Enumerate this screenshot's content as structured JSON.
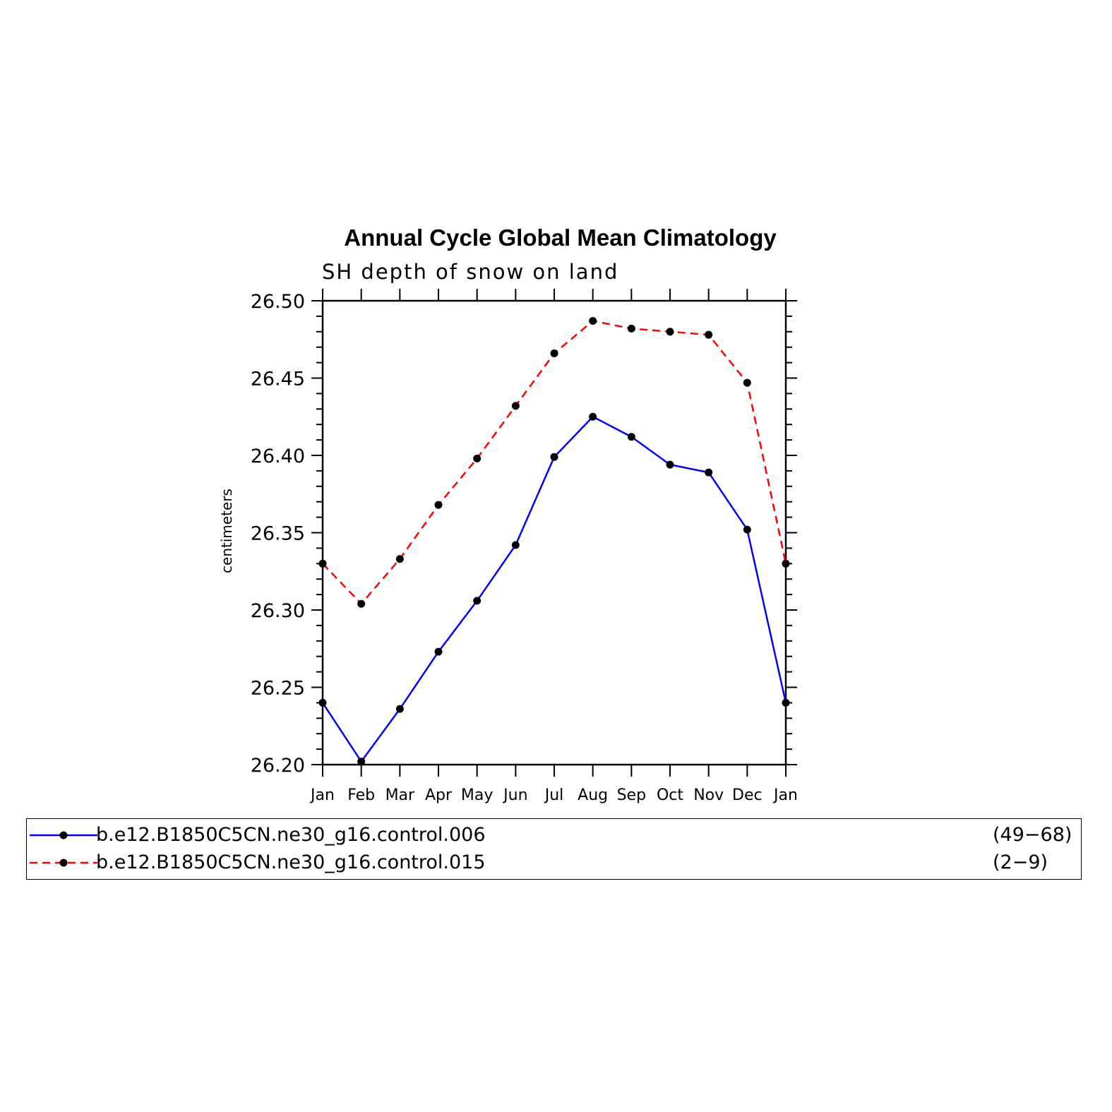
{
  "chart_data": {
    "type": "line",
    "title": "Annual Cycle Global Mean Climatology",
    "subtitle": "SH depth of snow on land",
    "xlabel": "",
    "ylabel": "centimeters",
    "categories": [
      "Jan",
      "Feb",
      "Mar",
      "Apr",
      "May",
      "Jun",
      "Jul",
      "Aug",
      "Sep",
      "Oct",
      "Nov",
      "Dec",
      "Jan"
    ],
    "ylim": [
      26.2,
      26.5
    ],
    "yticks": [
      "26.20",
      "26.25",
      "26.30",
      "26.35",
      "26.40",
      "26.45",
      "26.50"
    ],
    "grid": false,
    "legend_position": "bottom",
    "series": [
      {
        "name": "b.e12.B1850C5CN.ne30_g16.control.006",
        "years": "(49−68)",
        "color": "#0000ff",
        "style": "solid",
        "values": [
          26.24,
          26.202,
          26.236,
          26.273,
          26.306,
          26.342,
          26.399,
          26.425,
          26.412,
          26.394,
          26.389,
          26.352,
          26.24
        ]
      },
      {
        "name": "b.e12.B1850C5CN.ne30_g16.control.015",
        "years": "(2−9)",
        "color": "#ff0000",
        "style": "dashed",
        "values": [
          26.33,
          26.304,
          26.333,
          26.368,
          26.398,
          26.432,
          26.466,
          26.487,
          26.482,
          26.48,
          26.478,
          26.447,
          26.33
        ]
      }
    ]
  }
}
